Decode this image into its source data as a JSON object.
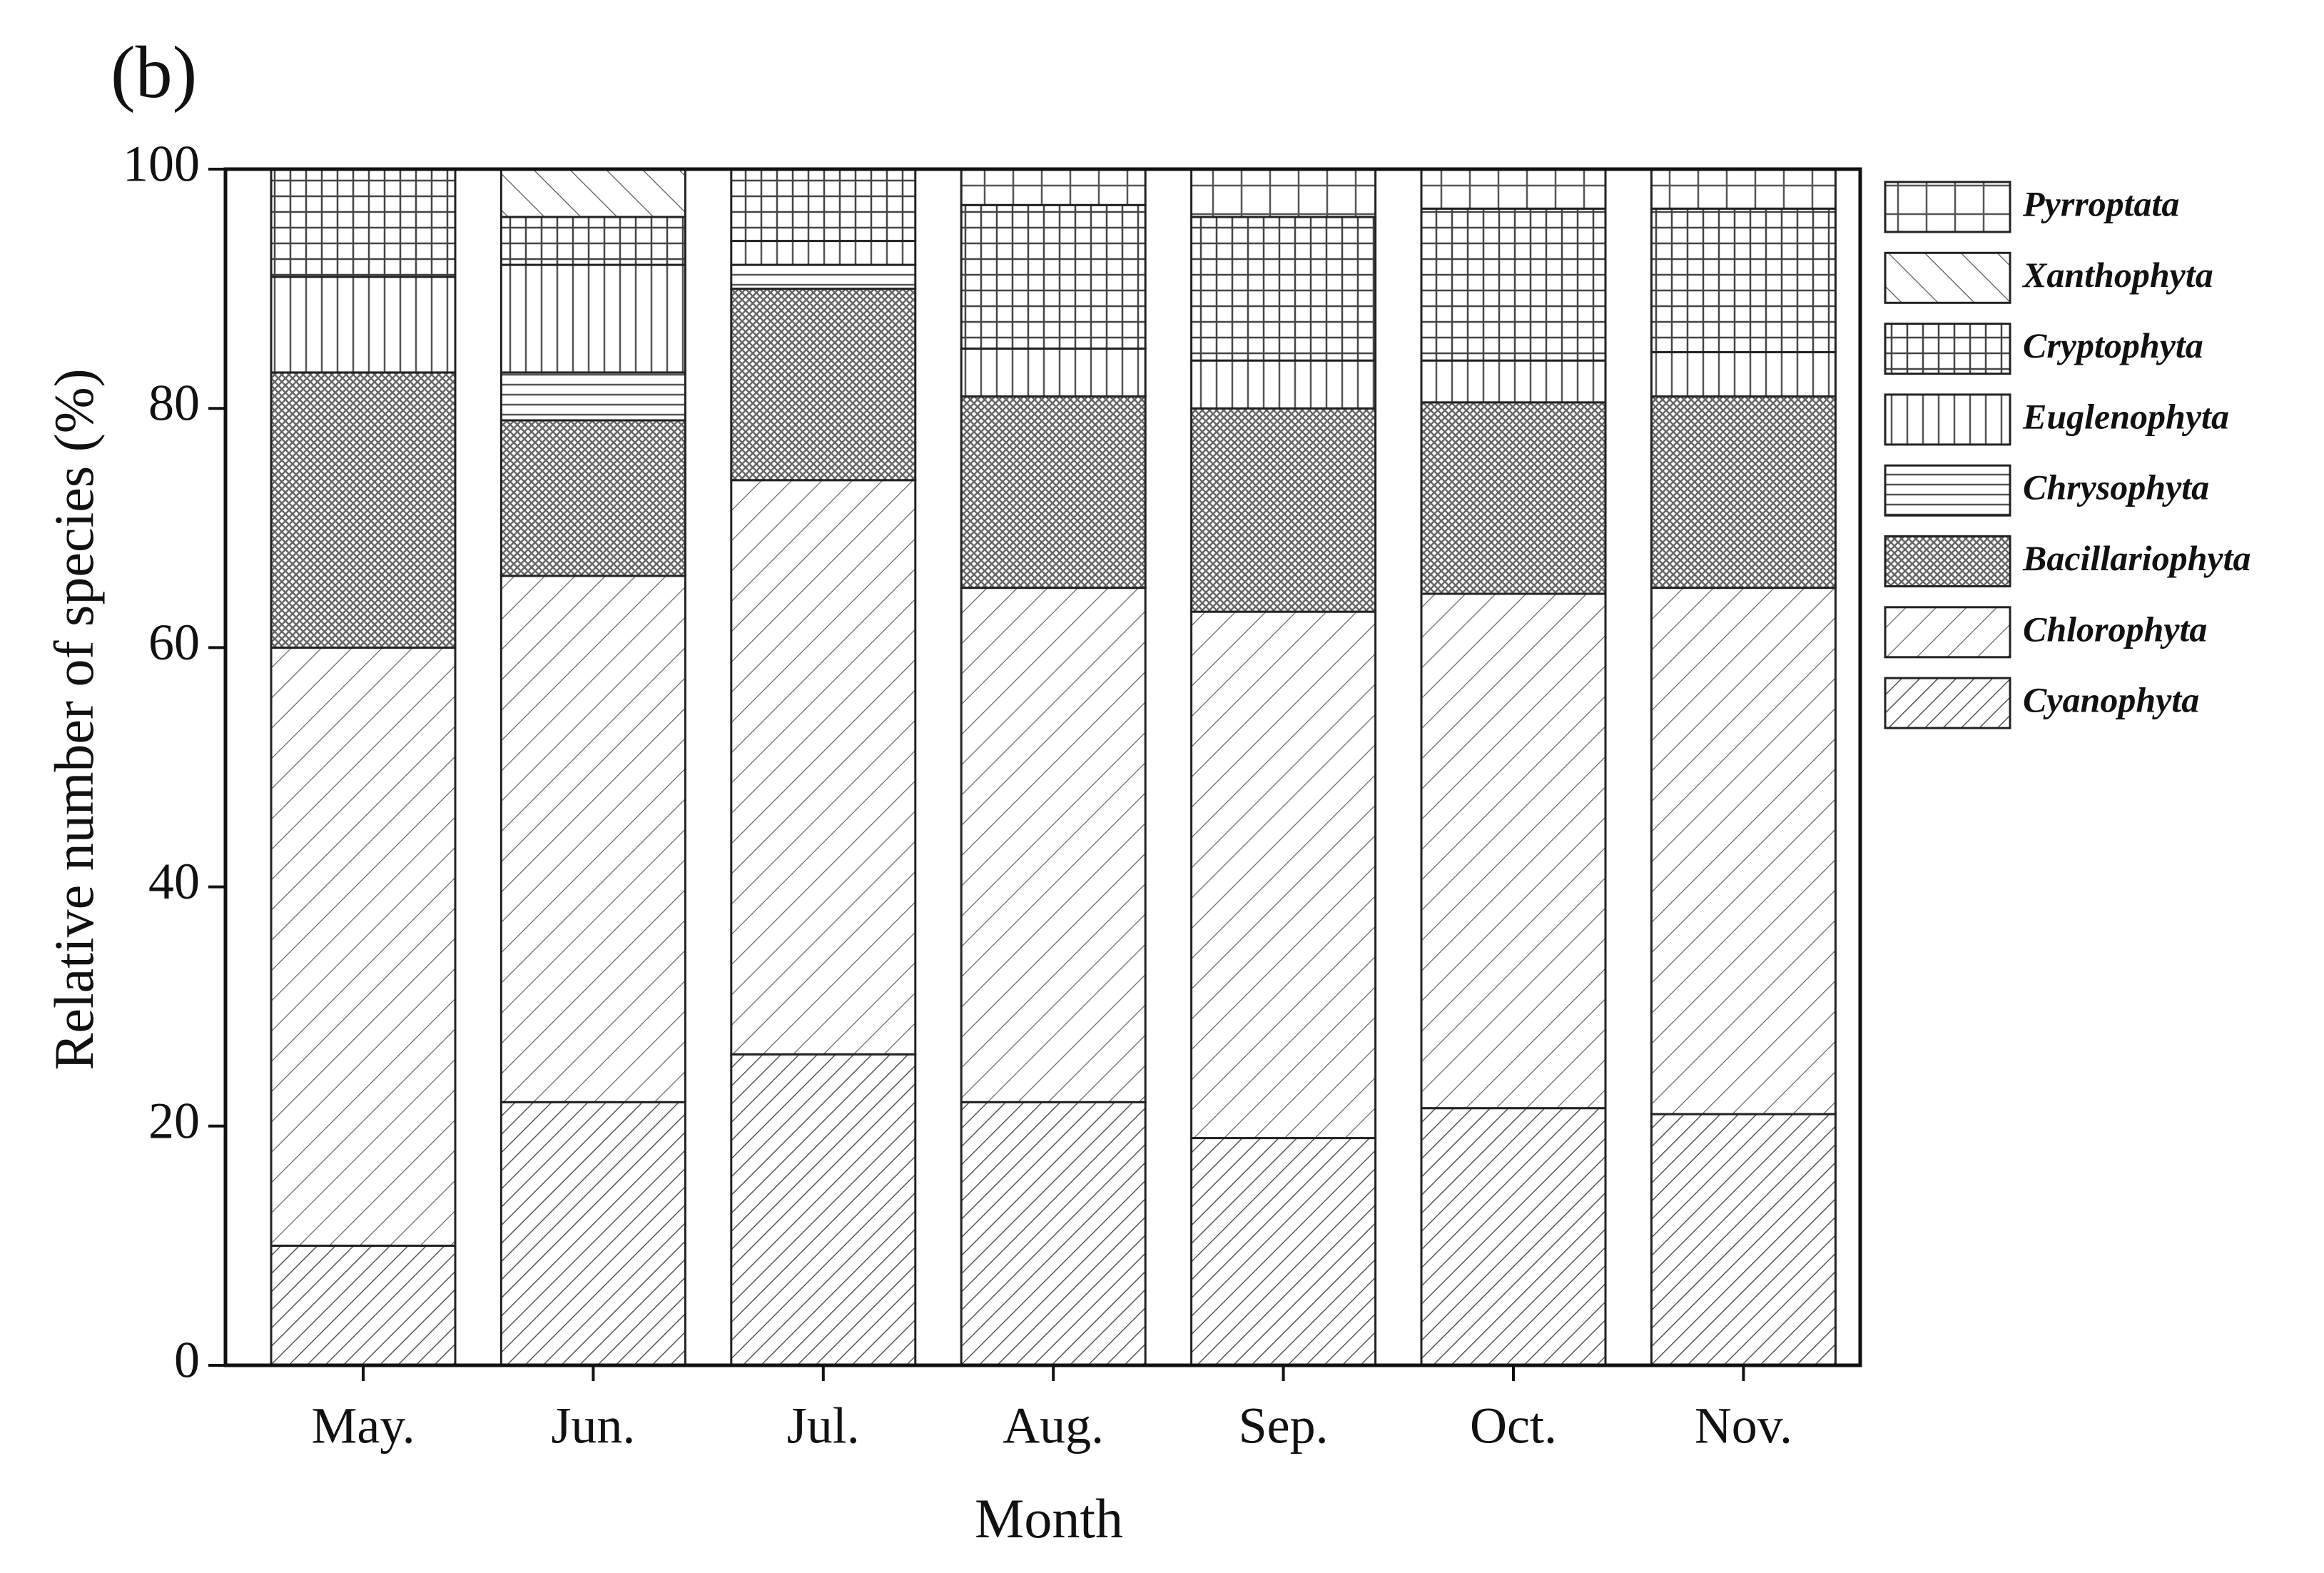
{
  "chart_data": {
    "type": "stacked-bar",
    "panel_label": "(b)",
    "x_label": "Month",
    "y_label": "Relative number of species (%)",
    "categories": [
      "May.",
      "Jun.",
      "Jul.",
      "Aug.",
      "Sep.",
      "Oct.",
      "Nov."
    ],
    "ylim": [
      0,
      100
    ],
    "yticks": [
      0,
      20,
      40,
      60,
      80,
      100
    ],
    "series": [
      {
        "name": "Cyanophyta",
        "color": "#ffffff",
        "values": [
          10,
          22,
          26,
          22,
          19,
          21.5,
          21
        ]
      },
      {
        "name": "Chlorophyta",
        "color": "#ffffff",
        "values": [
          50,
          44,
          48,
          43,
          44,
          43,
          44
        ]
      },
      {
        "name": "Bacillariophyta",
        "color": "#ffffff",
        "values": [
          23,
          13,
          16,
          16,
          17,
          16,
          16
        ]
      },
      {
        "name": "Chrysophyta",
        "color": "#ffffff",
        "values": [
          0,
          4,
          2,
          0,
          0,
          0,
          0
        ]
      },
      {
        "name": "Euglenophyta",
        "color": "#ffffff",
        "values": [
          8,
          9,
          2,
          4,
          4,
          3.5,
          3.7
        ]
      },
      {
        "name": "Cryptophyta",
        "color": "#ffffff",
        "values": [
          9,
          4,
          6,
          12,
          12,
          12.7,
          12
        ]
      },
      {
        "name": "Xanthophyta",
        "color": "#ffffff",
        "values": [
          0,
          4,
          0,
          0,
          0,
          0,
          0
        ]
      },
      {
        "name": "Pyrroptata",
        "color": "#ffffff",
        "values": [
          0,
          0,
          0,
          3,
          4,
          3.3,
          3.3
        ]
      }
    ]
  }
}
